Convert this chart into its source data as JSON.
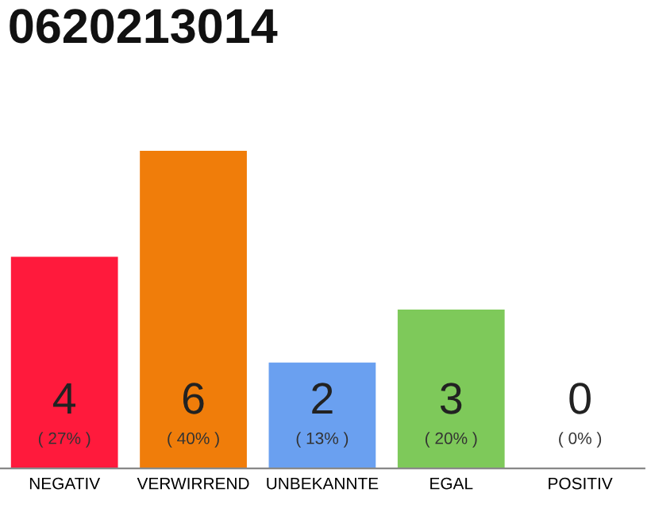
{
  "chart_data": {
    "type": "bar",
    "title": "0620213014",
    "categories": [
      "NEGATIV",
      "VERWIRREND",
      "UNBEKANNTE",
      "EGAL",
      "POSITIV"
    ],
    "values": [
      4,
      6,
      2,
      3,
      0
    ],
    "colors": [
      "#ff1a3c",
      "#f07d0a",
      "#6aa0f0",
      "#7ec95a",
      "#d0d0d0"
    ],
    "value_labels": [
      "4\n( 27% )",
      "6\n( 40% )",
      "2\n( 13% )",
      "3\n( 20% )",
      "0\n( 0% )"
    ],
    "grid": false,
    "legend": false
  }
}
